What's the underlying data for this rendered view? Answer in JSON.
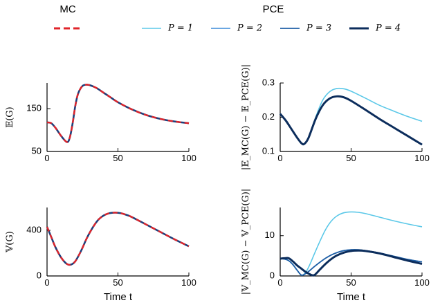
{
  "header": {
    "mc_title": "MC",
    "pce_title": "PCE"
  },
  "legend": [
    {
      "label": "P = 1",
      "color": "#5bc8e8"
    },
    {
      "label": "P = 2",
      "color": "#3a8ad8"
    },
    {
      "label": "P = 3",
      "color": "#1f5fa6"
    },
    {
      "label": "P = 4",
      "color": "#0c2d5c"
    }
  ],
  "mc_legend_color": "#e0242a",
  "colors": {
    "mc_dashed": "#e0242a",
    "mean_curve": "#1f3f7a",
    "p1": "#5bc8e8",
    "p2": "#3a8ad8",
    "p3": "#1f5fa6",
    "p4": "#0c2d5c",
    "axis": "#000000"
  },
  "chart_data": [
    {
      "id": "mean",
      "type": "line",
      "ylabel": "𝔼(G)",
      "xlabel": "",
      "xlim": [
        0,
        100
      ],
      "ylim": [
        50,
        210
      ],
      "xticks": [
        0,
        50,
        100
      ],
      "yticks": [
        50,
        150
      ],
      "x": [
        0,
        3,
        6,
        10,
        14,
        16,
        18,
        20,
        22,
        25,
        28,
        31,
        35,
        40,
        45,
        50,
        60,
        70,
        80,
        90,
        100
      ],
      "y": [
        118,
        116,
        105,
        86,
        72,
        82,
        115,
        158,
        186,
        203,
        206,
        204,
        198,
        187,
        176,
        165,
        148,
        135,
        126,
        120,
        116
      ],
      "series": [
        {
          "name": "",
          "kind": "mc",
          "y": [
            118,
            116,
            105,
            86,
            72,
            82,
            115,
            158,
            186,
            203,
            206,
            204,
            198,
            187,
            176,
            165,
            148,
            135,
            126,
            120,
            116
          ]
        }
      ]
    },
    {
      "id": "mean_error",
      "type": "line",
      "ylabel": "|𝔼_MC(G) − 𝔼_PCE(G)|",
      "xlabel": "",
      "xlim": [
        0,
        100
      ],
      "ylim": [
        0.1,
        0.3
      ],
      "xticks": [
        0,
        50,
        100
      ],
      "yticks": [
        0.1,
        0.2,
        0.3
      ],
      "x": [
        0,
        4,
        8,
        12,
        15,
        17,
        20,
        25,
        30,
        35,
        40,
        45,
        50,
        60,
        70,
        80,
        90,
        100
      ],
      "series": [
        {
          "name": "P = 1",
          "y": [
            0.21,
            0.19,
            0.165,
            0.14,
            0.124,
            0.122,
            0.14,
            0.2,
            0.25,
            0.275,
            0.284,
            0.283,
            0.276,
            0.256,
            0.235,
            0.218,
            0.202,
            0.188
          ]
        },
        {
          "name": "P = 2",
          "y": [
            0.21,
            0.19,
            0.165,
            0.14,
            0.124,
            0.122,
            0.14,
            0.195,
            0.235,
            0.255,
            0.261,
            0.258,
            0.248,
            0.222,
            0.195,
            0.17,
            0.145,
            0.12
          ]
        },
        {
          "name": "P = 3",
          "y": [
            0.21,
            0.19,
            0.165,
            0.14,
            0.124,
            0.122,
            0.14,
            0.195,
            0.235,
            0.255,
            0.261,
            0.258,
            0.248,
            0.222,
            0.195,
            0.17,
            0.145,
            0.12
          ]
        },
        {
          "name": "P = 4",
          "y": [
            0.21,
            0.19,
            0.165,
            0.14,
            0.124,
            0.122,
            0.14,
            0.195,
            0.235,
            0.255,
            0.261,
            0.258,
            0.248,
            0.222,
            0.195,
            0.17,
            0.145,
            0.12
          ]
        }
      ]
    },
    {
      "id": "variance",
      "type": "line",
      "ylabel": "𝕍(G)",
      "xlabel": "Time t",
      "xlim": [
        0,
        100
      ],
      "ylim": [
        0,
        600
      ],
      "xticks": [
        0,
        50,
        100
      ],
      "yticks": [
        0,
        400
      ],
      "x": [
        0,
        3,
        6,
        10,
        14,
        17,
        20,
        24,
        28,
        32,
        36,
        40,
        44,
        48,
        52,
        56,
        60,
        70,
        80,
        90,
        100
      ],
      "series": [
        {
          "name": "",
          "kind": "mc",
          "y": [
            430,
            340,
            250,
            160,
            105,
            100,
            130,
            220,
            330,
            420,
            490,
            530,
            550,
            555,
            550,
            535,
            515,
            450,
            385,
            320,
            260
          ]
        }
      ]
    },
    {
      "id": "variance_error",
      "type": "line",
      "ylabel": "|𝕍_MC(G) − 𝕍_PCE(G)|",
      "xlabel": "Time t",
      "xlim": [
        0,
        100
      ],
      "ylim": [
        0,
        17
      ],
      "xticks": [
        0,
        50,
        100
      ],
      "yticks": [
        0,
        10
      ],
      "x": [
        0,
        3,
        6,
        9,
        12,
        15,
        18,
        21,
        24,
        28,
        32,
        36,
        40,
        45,
        50,
        55,
        60,
        70,
        80,
        90,
        100
      ],
      "series": [
        {
          "name": "P = 1",
          "y": [
            4.3,
            4.2,
            3.8,
            2.8,
            1.4,
            0.2,
            0.9,
            2.9,
            5.4,
            8.6,
            11.5,
            13.6,
            14.9,
            15.7,
            15.9,
            15.8,
            15.5,
            14.6,
            13.7,
            12.9,
            12.2
          ]
        },
        {
          "name": "P = 2",
          "y": [
            4.3,
            4.2,
            3.8,
            2.8,
            1.4,
            0.2,
            0.6,
            1.4,
            2.3,
            3.4,
            4.4,
            5.2,
            5.8,
            6.3,
            6.5,
            6.5,
            6.3,
            5.7,
            4.9,
            4.1,
            3.5
          ]
        },
        {
          "name": "P = 3",
          "y": [
            4.3,
            4.2,
            3.8,
            2.8,
            1.4,
            0.2,
            0.6,
            1.4,
            2.3,
            3.4,
            4.4,
            5.2,
            5.8,
            6.3,
            6.5,
            6.5,
            6.3,
            5.7,
            4.9,
            4.1,
            3.5
          ]
        },
        {
          "name": "P = 4",
          "y": [
            4.3,
            4.4,
            4.4,
            3.6,
            2.6,
            1.8,
            1.0,
            0.4,
            0.2,
            1.6,
            3.0,
            4.2,
            5.1,
            5.8,
            6.2,
            6.3,
            6.2,
            5.6,
            4.7,
            3.8,
            3.0
          ]
        }
      ]
    }
  ]
}
